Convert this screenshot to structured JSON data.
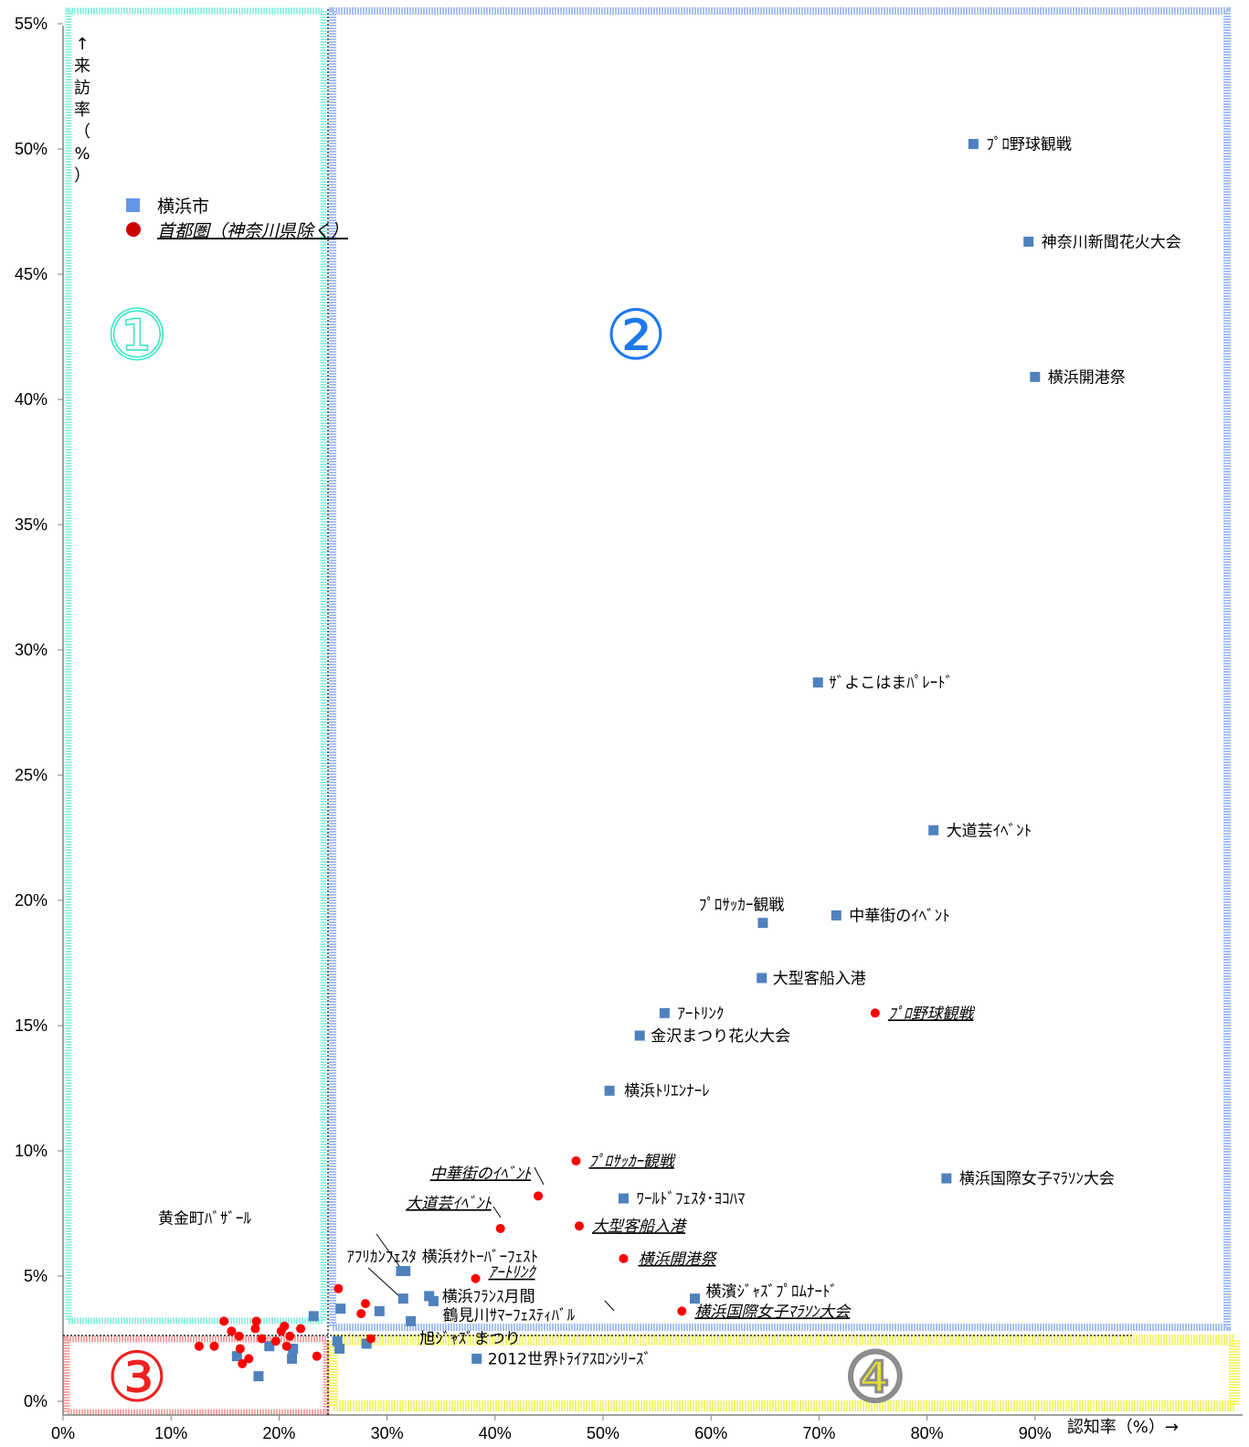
{
  "chart_data": {
    "type": "scatter",
    "xlabel": "認知率（%）→",
    "ylabel": "↑来訪率（%）",
    "xlim": [
      0,
      100
    ],
    "ylim": [
      0,
      55
    ],
    "x_ticks": [
      "0%",
      "10%",
      "20%",
      "30%",
      "40%",
      "50%",
      "60%",
      "70%",
      "80%",
      "90%"
    ],
    "y_ticks": [
      "0%",
      "5%",
      "10%",
      "15%",
      "20%",
      "25%",
      "30%",
      "35%",
      "40%",
      "45%",
      "50%",
      "55%"
    ],
    "legend_position": "top-left",
    "zone_labels": [
      "①",
      "②",
      "③",
      "④"
    ],
    "zone_colors": [
      "#3ce6c8",
      "#1e78f0",
      "#f02020",
      "#8c8c8c"
    ],
    "series": [
      {
        "name": "横浜市",
        "marker": "square",
        "color": "#4f81bd",
        "points": [
          {
            "x": 84.3,
            "y": 50.2,
            "label": "ﾌﾟﾛ野球観戦"
          },
          {
            "x": 89.4,
            "y": 46.3,
            "label": "神奈川新聞花火大会"
          },
          {
            "x": 90.0,
            "y": 40.9,
            "label": "横浜開港祭"
          },
          {
            "x": 69.9,
            "y": 28.7,
            "label": "ｻﾞよこはまﾊﾟﾚｰﾄﾞ"
          },
          {
            "x": 80.6,
            "y": 22.8,
            "label": "大道芸ｲﾍﾞﾝﾄ"
          },
          {
            "x": 71.6,
            "y": 19.4,
            "label": "中華街のｲﾍﾞﾝﾄ"
          },
          {
            "x": 64.8,
            "y": 19.1,
            "label": "ﾌﾟﾛｻｯｶｰ観戦"
          },
          {
            "x": 64.7,
            "y": 16.9,
            "label": "大型客船入港"
          },
          {
            "x": 55.7,
            "y": 15.5,
            "label": "ｱｰﾄﾘﾝｸ"
          },
          {
            "x": 53.4,
            "y": 14.6,
            "label": "金沢まつり花火大会"
          },
          {
            "x": 50.6,
            "y": 12.4,
            "label": "横浜ﾄﾘｴﾝﾅｰﾚ"
          },
          {
            "x": 81.8,
            "y": 8.9,
            "label": "横浜国際女子ﾏﾗｿﾝ大会"
          },
          {
            "x": 51.9,
            "y": 8.1,
            "label": "ﾜｰﾙﾄﾞﾌｪｽﾀ･ﾖｺﾊﾏ"
          },
          {
            "x": 31.7,
            "y": 5.2,
            "label": "横浜ｵｸﾄｰﾊﾞｰﾌｪｽﾄ"
          },
          {
            "x": 31.3,
            "y": 5.2,
            "label": ""
          },
          {
            "x": 31.5,
            "y": 4.1,
            "label": "ｱﾌﾘｶﾝﾌｪｽﾀ"
          },
          {
            "x": 33.9,
            "y": 4.2,
            "label": "横浜ﾌﾗﾝｽ月間"
          },
          {
            "x": 34.3,
            "y": 4.0,
            "label": ""
          },
          {
            "x": 58.5,
            "y": 4.1,
            "label": "横濱ｼﾞｬｽﾞﾌﾟﾛﾑﾅｰﾄﾞ"
          },
          {
            "x": 29.3,
            "y": 3.6,
            "label": ""
          },
          {
            "x": 25.7,
            "y": 3.7,
            "label": ""
          },
          {
            "x": 23.2,
            "y": 3.4,
            "label": ""
          },
          {
            "x": 32.2,
            "y": 3.2,
            "label": "鶴見川ｻﾏｰﾌｪｽﾃｨﾊﾞﾙ"
          },
          {
            "x": 28.1,
            "y": 2.3,
            "label": "旭ｼﾞｬｽﾞまつり"
          },
          {
            "x": 25.4,
            "y": 2.4,
            "label": ""
          },
          {
            "x": 25.6,
            "y": 2.1,
            "label": ""
          },
          {
            "x": 38.3,
            "y": 1.7,
            "label": "2012世界ﾄﾗｲｱｽﾛﾝｼﾘｰｽﾞ"
          },
          {
            "x": 16.1,
            "y": 1.8,
            "label": ""
          },
          {
            "x": 19.1,
            "y": 2.2,
            "label": ""
          },
          {
            "x": 21.3,
            "y": 2.1,
            "label": ""
          },
          {
            "x": 21.2,
            "y": 1.7,
            "label": ""
          },
          {
            "x": 18.1,
            "y": 1.0,
            "label": "黄金町ﾊﾞｻﾞｰﾙ"
          }
        ]
      },
      {
        "name": "首都圏（神奈川県除く）",
        "marker": "circle",
        "color": "#ff0000",
        "points": [
          {
            "x": 75.2,
            "y": 15.5,
            "label": "ﾌﾟﾛ野球観戦"
          },
          {
            "x": 47.5,
            "y": 9.6,
            "label": "ﾌﾟﾛｻｯｶｰ観戦"
          },
          {
            "x": 44.0,
            "y": 8.2,
            "label": "中華街のｲﾍﾞﾝﾄ"
          },
          {
            "x": 40.5,
            "y": 6.9,
            "label": "大道芸ｲﾍﾞﾝﾄ"
          },
          {
            "x": 47.8,
            "y": 7.0,
            "label": "大型客船入港"
          },
          {
            "x": 51.9,
            "y": 5.7,
            "label": "横浜開港祭"
          },
          {
            "x": 38.2,
            "y": 4.9,
            "label": "ｱｰﾄﾘﾝｸ"
          },
          {
            "x": 57.3,
            "y": 3.6,
            "label": "横浜国際女子ﾏﾗｿﾝ大会"
          },
          {
            "x": 25.5,
            "y": 4.5,
            "label": ""
          },
          {
            "x": 28.0,
            "y": 3.9,
            "label": ""
          },
          {
            "x": 27.6,
            "y": 3.5,
            "label": ""
          },
          {
            "x": 28.5,
            "y": 2.5,
            "label": ""
          },
          {
            "x": 23.5,
            "y": 1.8,
            "label": ""
          },
          {
            "x": 22.0,
            "y": 2.9,
            "label": ""
          },
          {
            "x": 21.0,
            "y": 2.6,
            "label": ""
          },
          {
            "x": 20.7,
            "y": 2.2,
            "label": ""
          },
          {
            "x": 20.5,
            "y": 3.0,
            "label": ""
          },
          {
            "x": 20.2,
            "y": 2.8,
            "label": ""
          },
          {
            "x": 19.7,
            "y": 2.4,
            "label": ""
          },
          {
            "x": 18.4,
            "y": 2.5,
            "label": ""
          },
          {
            "x": 17.9,
            "y": 3.2,
            "label": ""
          },
          {
            "x": 17.8,
            "y": 2.9,
            "label": ""
          },
          {
            "x": 17.2,
            "y": 1.7,
            "label": ""
          },
          {
            "x": 16.6,
            "y": 1.5,
            "label": ""
          },
          {
            "x": 16.4,
            "y": 2.1,
            "label": ""
          },
          {
            "x": 16.3,
            "y": 2.6,
            "label": ""
          },
          {
            "x": 15.6,
            "y": 2.8,
            "label": ""
          },
          {
            "x": 14.9,
            "y": 3.2,
            "label": ""
          },
          {
            "x": 14.0,
            "y": 2.2,
            "label": ""
          },
          {
            "x": 12.6,
            "y": 2.2,
            "label": ""
          }
        ]
      }
    ]
  }
}
